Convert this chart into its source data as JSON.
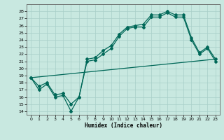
{
  "xlabel": "Humidex (Indice chaleur)",
  "xlim": [
    -0.5,
    23.5
  ],
  "ylim": [
    13.5,
    29
  ],
  "yticks": [
    14,
    15,
    16,
    17,
    18,
    19,
    20,
    21,
    22,
    23,
    24,
    25,
    26,
    27,
    28
  ],
  "xticks": [
    0,
    1,
    2,
    3,
    4,
    5,
    6,
    7,
    8,
    9,
    10,
    11,
    12,
    13,
    14,
    15,
    16,
    17,
    18,
    19,
    20,
    21,
    22,
    23
  ],
  "bg_color": "#c8e8e0",
  "grid_color": "#a8cfc8",
  "line_color": "#006858",
  "line1_x": [
    0,
    1,
    2,
    3,
    4,
    5,
    6,
    7,
    8,
    9,
    10,
    11,
    12,
    13,
    14,
    15,
    16,
    17,
    18,
    19,
    20,
    21,
    22,
    23
  ],
  "line1_y": [
    18.7,
    17.5,
    18.0,
    16.3,
    16.5,
    15.0,
    16.0,
    21.3,
    21.5,
    22.5,
    23.2,
    24.8,
    25.8,
    26.0,
    26.2,
    27.5,
    27.5,
    28.0,
    27.5,
    27.5,
    24.3,
    22.2,
    23.0,
    21.3
  ],
  "line2_x": [
    0,
    1,
    2,
    3,
    4,
    5,
    6,
    7,
    8,
    9,
    10,
    11,
    12,
    13,
    14,
    15,
    16,
    17,
    18,
    19,
    20,
    21,
    22,
    23
  ],
  "line2_y": [
    18.7,
    17.0,
    17.8,
    16.0,
    16.2,
    14.0,
    16.0,
    21.0,
    21.2,
    22.0,
    22.8,
    24.5,
    25.6,
    25.8,
    25.8,
    27.2,
    27.2,
    27.8,
    27.2,
    27.2,
    24.0,
    22.0,
    22.8,
    21.0
  ],
  "line3_x": [
    0,
    23
  ],
  "line3_y": [
    18.7,
    21.3
  ]
}
